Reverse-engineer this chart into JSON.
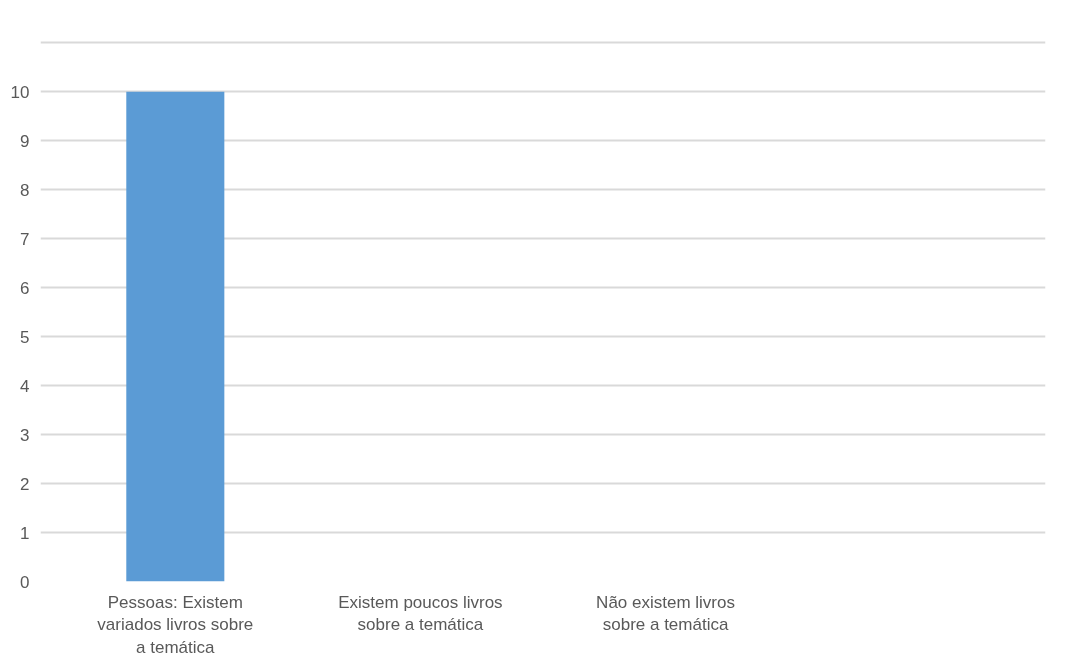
{
  "chart_data": {
    "type": "bar",
    "categories": [
      "Pessoas: Existem variados livros sobre a temática",
      "Existem poucos livros sobre a temática",
      "Não existem livros sobre a temática",
      null
    ],
    "values": [
      10,
      0,
      0,
      null
    ],
    "colors": [
      "#5b9bd5",
      "#c55a11",
      "#7f7f7f",
      "#5b9bd5"
    ],
    "ylim": [
      0,
      11
    ],
    "yticks": [
      0,
      1,
      2,
      3,
      4,
      5,
      6,
      7,
      8,
      9,
      10,
      {
        "value": 11,
        "label": null
      }
    ],
    "grid": "y"
  }
}
